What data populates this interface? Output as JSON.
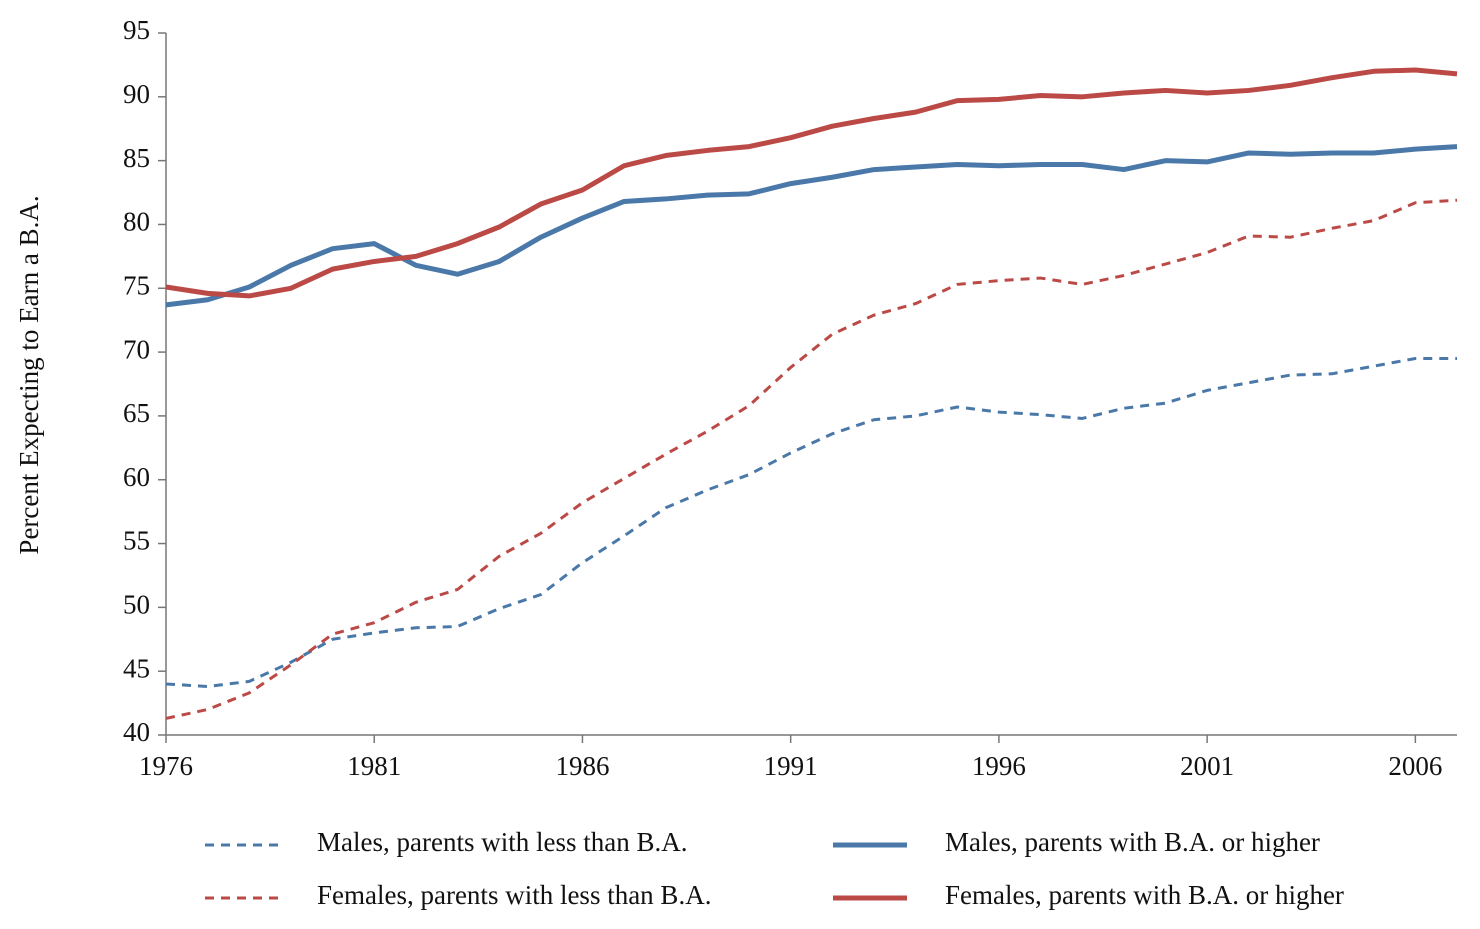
{
  "chart_data": {
    "type": "line",
    "y_label": "Percent Expecting to Earn a B.A.",
    "x": [
      1976,
      1977,
      1978,
      1979,
      1980,
      1981,
      1982,
      1983,
      1984,
      1985,
      1986,
      1987,
      1988,
      1989,
      1990,
      1991,
      1992,
      1993,
      1994,
      1995,
      1996,
      1997,
      1998,
      1999,
      2000,
      2001,
      2002,
      2003,
      2004,
      2005,
      2006,
      2007
    ],
    "xlim": [
      1976,
      2007
    ],
    "xticks": [
      1976,
      1981,
      1986,
      1991,
      1996,
      2001,
      2006
    ],
    "ylim": [
      40,
      95
    ],
    "yticks": [
      40,
      45,
      50,
      55,
      60,
      65,
      70,
      75,
      80,
      85,
      90,
      95
    ],
    "series": [
      {
        "name": "Males, parents with less than B.A.",
        "color": "#4a78a8",
        "dashed": true,
        "values": [
          44.0,
          43.8,
          44.2,
          45.7,
          47.5,
          48.0,
          48.4,
          48.5,
          49.9,
          51.0,
          53.5,
          55.6,
          57.8,
          59.2,
          60.4,
          62.1,
          63.6,
          64.7,
          65.0,
          65.7,
          65.3,
          65.1,
          64.8,
          65.6,
          66.0,
          67.0,
          67.6,
          68.2,
          68.3,
          68.9,
          69.5,
          69.5
        ]
      },
      {
        "name": "Males, parents with B.A. or higher",
        "color": "#4a78a8",
        "dashed": false,
        "values": [
          73.7,
          74.1,
          75.1,
          76.8,
          78.1,
          78.5,
          76.8,
          76.1,
          77.1,
          79.0,
          80.5,
          81.8,
          82.0,
          82.3,
          82.4,
          83.2,
          83.7,
          84.3,
          84.5,
          84.7,
          84.6,
          84.7,
          84.7,
          84.3,
          85.0,
          84.9,
          85.6,
          85.5,
          85.6,
          85.6,
          85.9,
          86.1
        ]
      },
      {
        "name": "Females, parents with less than B.A.",
        "color": "#bb4a47",
        "dashed": true,
        "values": [
          41.3,
          42.0,
          43.3,
          45.5,
          47.9,
          48.8,
          50.4,
          51.4,
          54.0,
          55.8,
          58.2,
          60.1,
          62.0,
          63.8,
          65.8,
          68.8,
          71.4,
          72.9,
          73.8,
          75.3,
          75.6,
          75.8,
          75.3,
          76.0,
          76.9,
          77.8,
          79.1,
          79.0,
          79.7,
          80.3,
          81.7,
          81.9
        ]
      },
      {
        "name": "Females, parents with B.A. or higher",
        "color": "#bb4a47",
        "dashed": false,
        "values": [
          75.1,
          74.6,
          74.4,
          75.0,
          76.5,
          77.1,
          77.5,
          78.5,
          79.8,
          81.6,
          82.7,
          84.6,
          85.4,
          85.8,
          86.1,
          86.8,
          87.7,
          88.3,
          88.8,
          89.7,
          89.8,
          90.1,
          90.0,
          90.3,
          90.5,
          90.3,
          90.5,
          90.9,
          91.5,
          92.0,
          92.1,
          91.8
        ]
      }
    ]
  }
}
